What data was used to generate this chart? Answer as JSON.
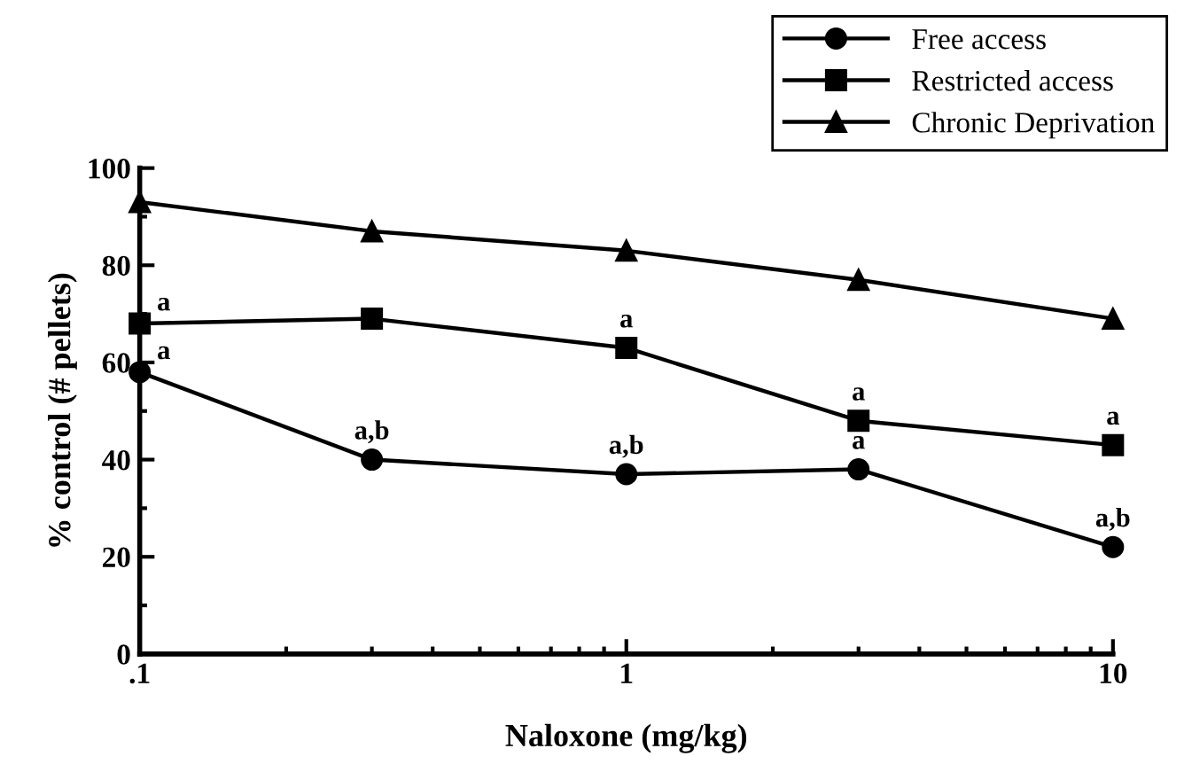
{
  "chart_data": {
    "type": "line",
    "xlabel": "Naloxone (mg/kg)",
    "ylabel": "% control (# pellets)",
    "x": [
      0.1,
      0.3,
      1,
      3,
      10
    ],
    "series": [
      {
        "name": "Free access",
        "color": "#000000",
        "marker": "circle",
        "values": [
          58,
          40,
          37,
          38,
          22
        ]
      },
      {
        "name": "Restricted access",
        "color": "#000000",
        "marker": "square",
        "values": [
          68,
          69,
          63,
          48,
          43
        ]
      },
      {
        "name": "Chronic Deprivation",
        "color": "#000000",
        "marker": "triangle",
        "values": [
          93,
          87,
          83,
          77,
          69
        ]
      }
    ],
    "log": "x",
    "xlim": [
      0.1,
      10
    ],
    "xticks": [
      {
        "value": 0.1,
        "label": ".1"
      },
      1,
      10
    ],
    "ylim": [
      0,
      100
    ],
    "yticks": [
      0,
      20,
      40,
      60,
      80,
      100
    ],
    "grid": false,
    "legend": "top right",
    "line_style": "solid",
    "annotations": [
      {
        "text": "a",
        "x": 0.1,
        "y": 58
      },
      {
        "text": "a,b",
        "x": 0.3,
        "y": 40
      },
      {
        "text": "a,b",
        "x": 1,
        "y": 37
      },
      {
        "text": "a",
        "x": 3,
        "y": 38
      },
      {
        "text": "a,b",
        "x": 10,
        "y": 22
      },
      {
        "text": "a",
        "x": 0.1,
        "y": 68
      },
      {
        "text": "a",
        "x": 1,
        "y": 63
      },
      {
        "text": "a",
        "x": 3,
        "y": 48
      },
      {
        "text": "a",
        "x": 10,
        "y": 43
      }
    ]
  }
}
